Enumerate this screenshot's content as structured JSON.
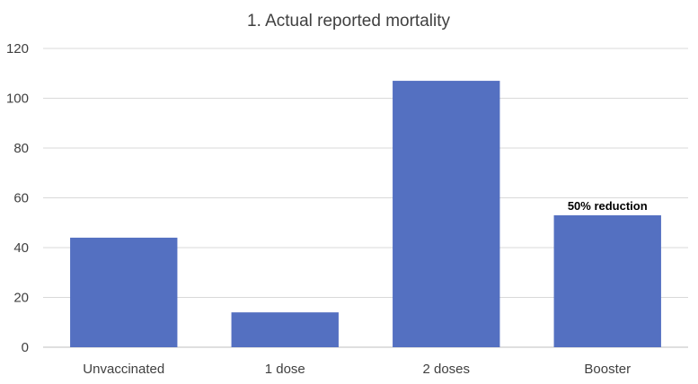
{
  "chart_data": {
    "type": "bar",
    "title": "1. Actual reported mortality",
    "xlabel": "",
    "ylabel": "",
    "categories": [
      "Unvaccinated",
      "1 dose",
      "2 doses",
      "Booster"
    ],
    "values": [
      44,
      14,
      107,
      53
    ],
    "ylim": [
      0,
      120
    ],
    "yticks": [
      "0",
      "20",
      "40",
      "60",
      "80",
      "100",
      "120"
    ],
    "grid": true,
    "legend": "none",
    "annotations": [
      {
        "category": "Booster",
        "text": "50% reduction"
      }
    ],
    "colors": {
      "bar": "#5470c1",
      "grid": "#d9d9d9",
      "text": "#404040"
    }
  }
}
